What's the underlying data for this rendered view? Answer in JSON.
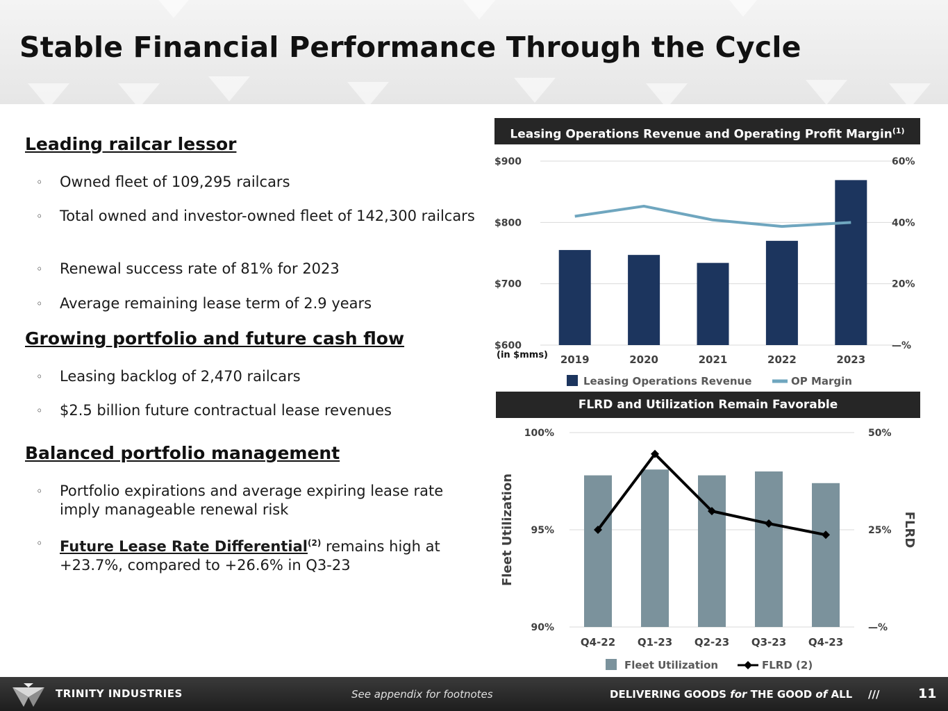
{
  "slide": {
    "title": "Stable Financial Performance Through the Cycle"
  },
  "left": {
    "sections": [
      {
        "heading": "Leading railcar lessor",
        "bullets": [
          "Owned fleet of 109,295 railcars",
          "Total owned and investor-owned fleet of 142,300 railcars",
          "Renewal success rate of 81% for 2023",
          "Average remaining lease term of 2.9 years"
        ]
      },
      {
        "heading": "Growing portfolio and future cash flow",
        "bullets": [
          "Leasing backlog of 2,470 railcars",
          "$2.5 billion future contractual lease revenues"
        ]
      },
      {
        "heading": "Balanced portfolio management",
        "bullets": [
          "Portfolio expirations and average expiring lease rate imply manageable renewal risk"
        ],
        "flrd_bullet": {
          "link": "Future Lease Rate Differential",
          "sup": "(2)",
          "rest": " remains high at +23.7%, compared to +26.6% in Q3-23"
        }
      }
    ],
    "bullet_marker": "◦"
  },
  "chart_data": [
    {
      "type": "bar",
      "title": "Leasing Operations Revenue and Operating Profit Margin",
      "title_sup": "(1)",
      "categories": [
        "2019",
        "2020",
        "2021",
        "2022",
        "2023"
      ],
      "series": [
        {
          "name": "Leasing Operations Revenue",
          "type": "bar",
          "axis": "left",
          "values": [
            755,
            747,
            734,
            770,
            869
          ]
        },
        {
          "name": "OP Margin",
          "type": "line",
          "axis": "right",
          "values": [
            42,
            45.3,
            40.8,
            38.7,
            40
          ]
        }
      ],
      "left_axis": {
        "range": [
          600,
          900
        ],
        "ticks": [
          "$600",
          "$700",
          "$800",
          "$900"
        ],
        "note": "(in $mms)"
      },
      "right_axis": {
        "range": [
          0,
          60
        ],
        "ticks": [
          "—%",
          "20%",
          "40%",
          "60%"
        ]
      },
      "colors": {
        "bar": "#1c355e",
        "line": "#6fa6bf"
      },
      "legend": "bottom"
    },
    {
      "type": "bar",
      "title": "FLRD and Utilization Remain Favorable",
      "categories": [
        "Q4-22",
        "Q1-23",
        "Q2-23",
        "Q3-23",
        "Q4-23"
      ],
      "series": [
        {
          "name": "Fleet Utilization",
          "type": "bar",
          "axis": "left",
          "values": [
            97.8,
            98.1,
            97.8,
            98.0,
            97.4
          ]
        },
        {
          "name": "FLRD (2)",
          "type": "line",
          "axis": "right",
          "values": [
            25,
            44.5,
            29.8,
            26.6,
            23.7
          ]
        }
      ],
      "left_axis": {
        "label": "Fleet Utilization",
        "range": [
          90,
          100
        ],
        "ticks": [
          "90%",
          "95%",
          "100%"
        ]
      },
      "right_axis": {
        "label": "FLRD",
        "range": [
          0,
          50
        ],
        "ticks": [
          "—%",
          "25%",
          "50%"
        ]
      },
      "colors": {
        "bar": "#7b929c",
        "line": "#000000"
      },
      "legend": "bottom"
    }
  ],
  "footer": {
    "brand": "TRINITY INDUSTRIES",
    "note": "See appendix for footnotes",
    "tag_a": "DELIVERING GOODS ",
    "tag_b": "for",
    "tag_c": " THE GOOD ",
    "tag_d": "of",
    "tag_e": " ALL",
    "slashes": "///",
    "page": "11"
  }
}
